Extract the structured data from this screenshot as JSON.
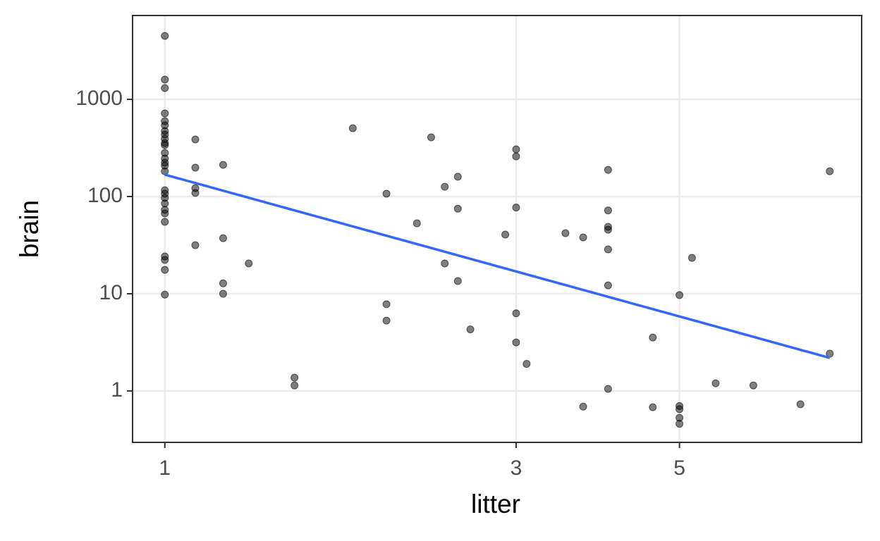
{
  "chart_data": {
    "type": "scatter",
    "x_label": "litter",
    "y_label": "brain",
    "xlog": true,
    "ylog": true,
    "grid": true,
    "xlim": [
      0.904,
      8.84
    ],
    "ylim": [
      0.296,
      7280
    ],
    "xticks": [
      1,
      3,
      5
    ],
    "yticks": [
      1,
      10,
      100,
      1000
    ],
    "point_color": "#000000",
    "x": [
      1,
      1,
      1,
      1,
      1,
      1,
      1,
      1,
      1,
      1,
      1,
      1,
      1,
      1,
      1,
      1,
      1,
      1,
      1,
      1,
      1,
      1,
      1,
      1,
      1,
      1,
      1,
      1.1,
      1.1,
      1.1,
      1.1,
      1.1,
      1.2,
      1.2,
      1.2,
      1.2,
      1.3,
      1.5,
      1.5,
      1.8,
      2,
      2,
      2,
      2.2,
      2.3,
      2.4,
      2.4,
      2.5,
      2.5,
      2.5,
      2.6,
      2.9,
      3,
      3,
      3,
      3,
      3,
      3.1,
      3.5,
      3.7,
      3.7,
      4,
      4,
      4,
      4,
      4,
      4,
      4,
      4.6,
      4.6,
      5,
      5,
      5,
      5,
      5,
      5.2,
      5.6,
      6.3,
      7.3,
      8,
      8
    ],
    "y": [
      4490,
      1596,
      1306,
      716,
      596,
      540,
      472,
      434,
      393,
      355,
      338,
      281,
      246,
      223,
      208,
      182,
      116,
      107,
      97,
      85,
      73,
      67,
      55,
      24.2,
      22.3,
      17.6,
      9.8,
      386,
      198,
      122,
      109,
      31.6,
      212,
      37.3,
      12.8,
      10,
      20.5,
      1.37,
      1.14,
      504,
      107,
      7.8,
      5.3,
      53,
      406,
      126,
      20.5,
      160,
      75,
      13.5,
      4.3,
      40.6,
      306,
      259,
      77,
      6.3,
      3.16,
      1.9,
      42,
      38,
      0.69,
      188,
      72,
      48.8,
      45.6,
      28.6,
      12.2,
      1.05,
      3.55,
      0.68,
      9.7,
      0.7,
      0.65,
      0.53,
      0.46,
      23.4,
      1.2,
      1.14,
      0.73,
      182,
      2.42
    ],
    "trend": {
      "x": [
        1,
        8
      ],
      "y": [
        168,
        2.19
      ],
      "color": "#3366ff"
    }
  }
}
